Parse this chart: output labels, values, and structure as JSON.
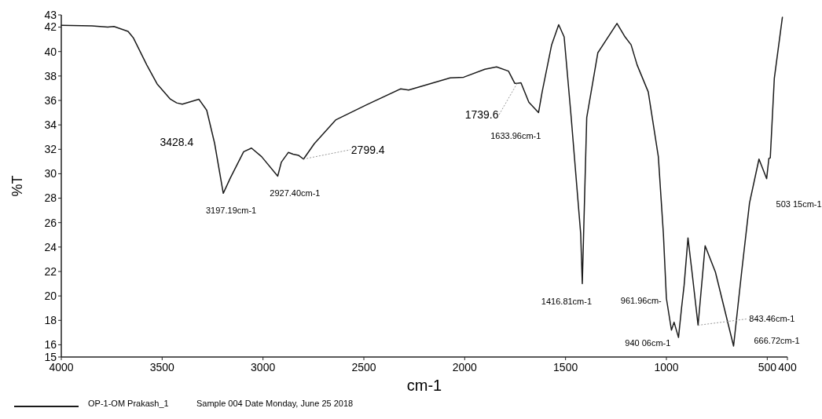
{
  "chart_data": {
    "type": "line",
    "xlabel": "cm-1",
    "ylabel": "%T",
    "xlim": [
      4000,
      400
    ],
    "xticks": [
      4000,
      3500,
      3000,
      2500,
      2000,
      1500,
      1000,
      500,
      400
    ],
    "ylim": [
      15,
      43
    ],
    "yticks": [
      15,
      16,
      18,
      20,
      22,
      24,
      26,
      28,
      30,
      32,
      34,
      36,
      38,
      40,
      42,
      43
    ],
    "grid": false,
    "legend": "bottom left",
    "marker": "none",
    "line_style": "solid",
    "series": [
      {
        "name": "OP-1-OM Prakash_1",
        "color": "#1a1a1a",
        "x": [
          4000,
          3848,
          3770,
          3739,
          3669,
          3642,
          3576,
          3525,
          3459,
          3428,
          3400,
          3318,
          3279,
          3240,
          3197,
          3162,
          3096,
          3057,
          3007,
          2927,
          2909,
          2874,
          2851,
          2823,
          2799,
          2746,
          2640,
          2485,
          2317,
          2278,
          2072,
          2005,
          1900,
          1842,
          1783,
          1752,
          1740,
          1721,
          1682,
          1634,
          1616,
          1569,
          1534,
          1507,
          1472,
          1425,
          1417,
          1395,
          1340,
          1245,
          1205,
          1175,
          1145,
          1090,
          1040,
          1015,
          1000,
          975,
          962,
          940,
          925,
          912,
          893,
          873,
          843,
          808,
          757,
          667,
          627,
          588,
          541,
          503,
          492,
          485,
          465,
          425
        ],
        "values": [
          42.15,
          42.1,
          42.0,
          42.05,
          41.65,
          41.1,
          38.9,
          37.35,
          36.1,
          35.8,
          35.7,
          36.1,
          35.2,
          32.5,
          28.4,
          29.65,
          31.8,
          32.1,
          31.4,
          29.8,
          30.95,
          31.75,
          31.6,
          31.5,
          31.2,
          32.45,
          34.4,
          35.65,
          36.95,
          36.85,
          37.85,
          37.9,
          38.55,
          38.75,
          38.4,
          37.4,
          37.4,
          37.45,
          35.85,
          35.0,
          36.7,
          40.55,
          42.2,
          41.2,
          34.6,
          25.1,
          21.0,
          34.6,
          39.9,
          42.3,
          41.2,
          40.55,
          38.9,
          36.7,
          31.4,
          25.1,
          19.8,
          17.2,
          17.85,
          16.6,
          19.0,
          20.9,
          24.75,
          21.95,
          17.6,
          24.1,
          21.95,
          15.9,
          21.95,
          27.6,
          31.2,
          29.6,
          31.25,
          31.3,
          37.8,
          42.8
        ]
      }
    ],
    "annotations": [
      {
        "text": "3428.4",
        "x": 3428,
        "y": 35.8
      },
      {
        "text": "3197.19cm-1",
        "x": 3197,
        "y": 28.4
      },
      {
        "text": "2927.40cm-1",
        "x": 2927,
        "y": 29.8
      },
      {
        "text": "2799.4",
        "x": 2799,
        "y": 31.2
      },
      {
        "text": "1739.6",
        "x": 1740,
        "y": 37.4
      },
      {
        "text": "1633.96cm-1",
        "x": 1634,
        "y": 35.0
      },
      {
        "text": "1416.81cm-1",
        "x": 1417,
        "y": 21.0
      },
      {
        "text": "961.96cm-",
        "x": 962,
        "y": 17.85
      },
      {
        "text": "940 06cm-1",
        "x": 940,
        "y": 16.6
      },
      {
        "text": "843.46cm-1",
        "x": 843,
        "y": 17.6
      },
      {
        "text": "666.72cm-1",
        "x": 667,
        "y": 15.9
      },
      {
        "text": "503 15cm-1",
        "x": 503,
        "y": 29.6
      },
      "Sample 004 Date Monday, June 25 2018"
    ]
  }
}
